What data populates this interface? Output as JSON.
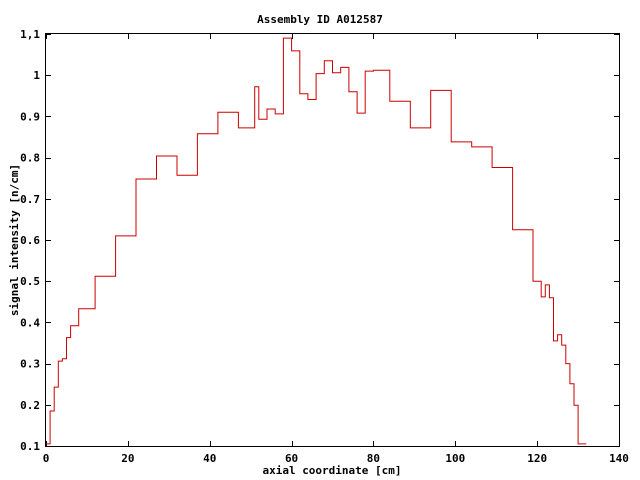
{
  "chart_data": {
    "type": "line",
    "style": "step",
    "title": "Assembly ID A012587",
    "xlabel": "axial coordinate [cm]",
    "ylabel": "signal intensity [n/cm]",
    "xlim": [
      0,
      140
    ],
    "ylim": [
      0.1,
      1.1
    ],
    "xticks": [
      0,
      20,
      40,
      60,
      80,
      100,
      120,
      140
    ],
    "xtick_labels": [
      "0",
      "20",
      "40",
      "60",
      "80",
      "100",
      "120",
      "140"
    ],
    "yticks": [
      0.1,
      0.2,
      0.3,
      0.4,
      0.5,
      0.6,
      0.7,
      0.8,
      0.9,
      1.0,
      1.1
    ],
    "ytick_labels": [
      "0.1",
      "0.2",
      "0.3",
      "0.4",
      "0.5",
      "0.6",
      "0.7",
      "0.8",
      "0.9",
      "1",
      "1,1"
    ],
    "grid": false,
    "legend": false,
    "series": [
      {
        "color": "#cc0000",
        "x": [
          0,
          1,
          2,
          3,
          4,
          5,
          6,
          8,
          12,
          17,
          22,
          27,
          32,
          37,
          42,
          47,
          51,
          52,
          54,
          56,
          58,
          60,
          62,
          64,
          66,
          68,
          70,
          72,
          74,
          76,
          78,
          80,
          84,
          89,
          94,
          99,
          104,
          109,
          114,
          119,
          121,
          122,
          123,
          124,
          125,
          126,
          127,
          128,
          129,
          130,
          131,
          132
        ],
        "y": [
          0.105,
          0.185,
          0.243,
          0.306,
          0.312,
          0.363,
          0.392,
          0.433,
          0.512,
          0.61,
          0.748,
          0.804,
          0.757,
          0.858,
          0.91,
          0.872,
          0.972,
          0.893,
          0.918,
          0.906,
          1.09,
          1.059,
          0.955,
          0.941,
          1.004,
          1.035,
          1.006,
          1.019,
          0.96,
          0.908,
          1.01,
          1.012,
          0.937,
          0.872,
          0.963,
          0.838,
          0.826,
          0.776,
          0.625,
          0.5,
          0.462,
          0.491,
          0.46,
          0.355,
          0.37,
          0.345,
          0.3,
          0.251,
          0.199,
          0.105,
          0.105,
          0.105
        ]
      }
    ]
  }
}
